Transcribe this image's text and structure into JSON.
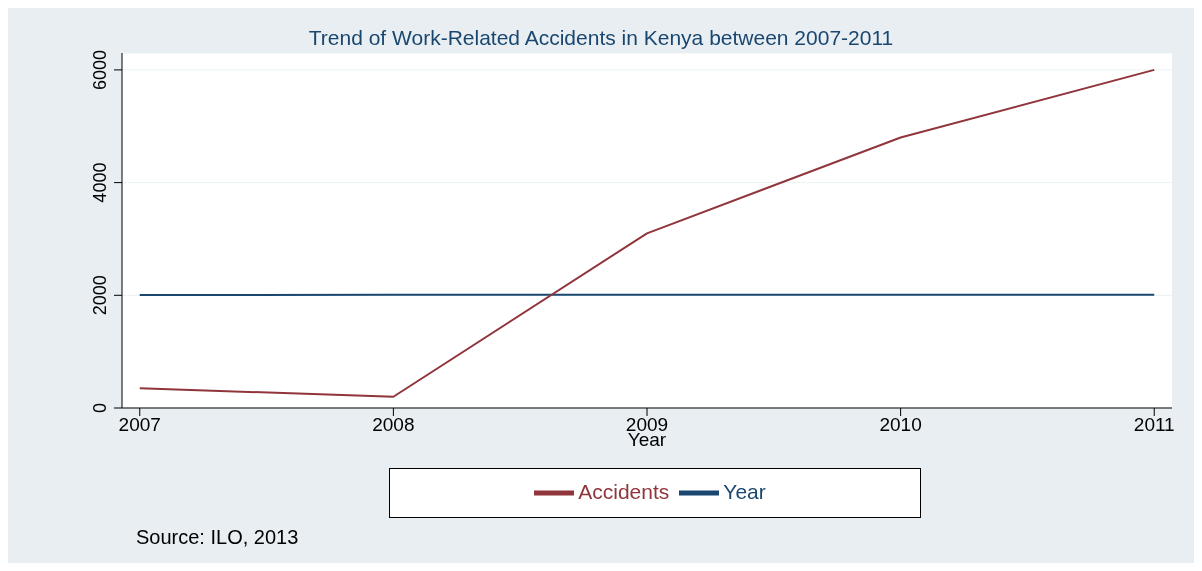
{
  "chart_data": {
    "type": "line",
    "title": "Trend of Work-Related Accidents in Kenya between 2007-2011",
    "xlabel": "Year",
    "x": [
      2007,
      2008,
      2009,
      2010,
      2011
    ],
    "series": [
      {
        "name": "Year",
        "color": "#1a476f",
        "values": [
          2007,
          2008,
          2009,
          2010,
          2011
        ]
      },
      {
        "name": "Accidents",
        "color": "#90353b",
        "values": [
          350,
          200,
          3100,
          4800,
          6000
        ]
      }
    ],
    "xlim": [
      2006.93,
      2011.07
    ],
    "xticks": [
      2007,
      2008,
      2009,
      2010,
      2011
    ],
    "ylim": [
      0,
      6300
    ],
    "yticks": [
      0,
      2000,
      4000,
      6000
    ],
    "grid": "y",
    "legend": "bottom",
    "marker": "none",
    "line_style": "solid",
    "annotations": [
      "Source: ILO, 2013"
    ]
  }
}
